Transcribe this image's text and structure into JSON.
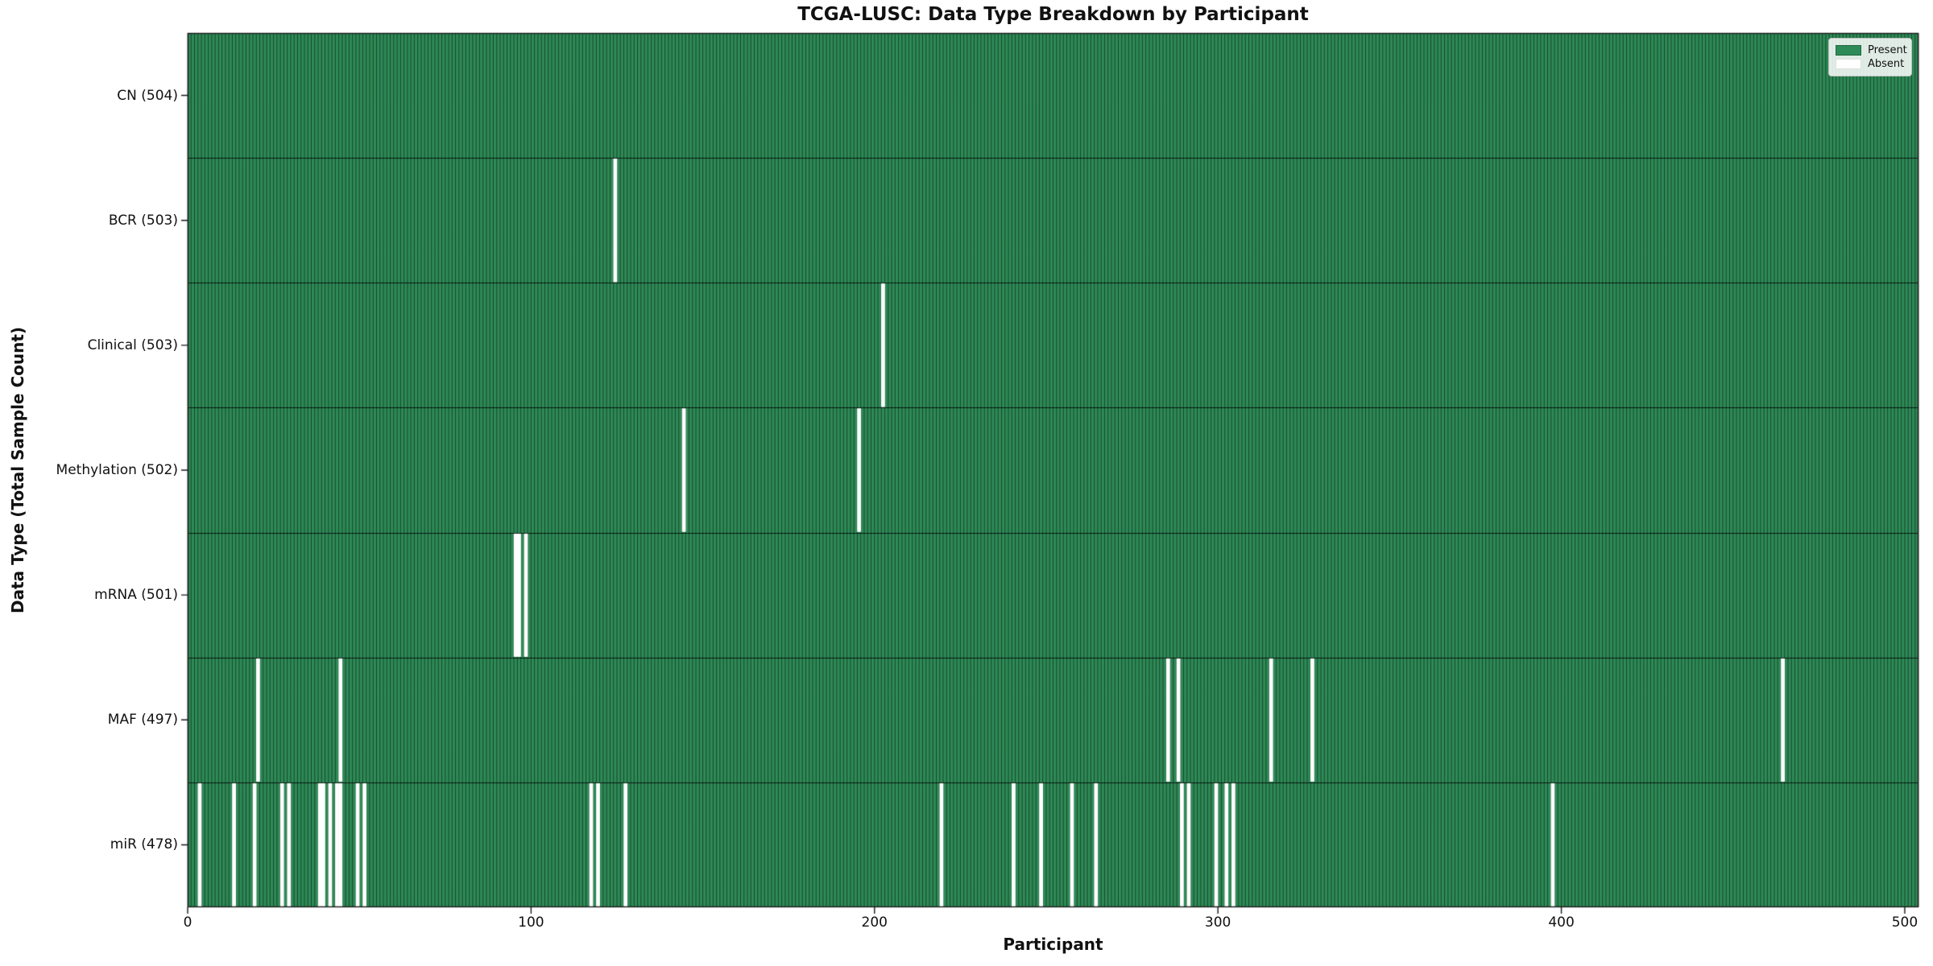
{
  "chart_data": {
    "type": "heatmap",
    "title": "TCGA-LUSC: Data Type Breakdown by Participant",
    "xlabel": "Participant",
    "ylabel": "Data Type (Total Sample Count)",
    "x_ticks": [
      0,
      100,
      200,
      300,
      400,
      500
    ],
    "xlim": [
      0,
      504
    ],
    "n_participants": 504,
    "grid": false,
    "legend": [
      "Present",
      "Absent"
    ],
    "legend_position": "upper right",
    "colors": {
      "present": "#2e8b57",
      "absent": "#ffffff",
      "bar_edge": "rgba(0,0,0,0.5)",
      "row_divider": "rgba(0,0,0,0.8)",
      "spine": "#1a1a1a",
      "background": "#ffffff"
    },
    "rows": [
      {
        "name": "CN",
        "label": "CN (504)",
        "total": 504,
        "absent_participants": []
      },
      {
        "name": "BCR",
        "label": "BCR (503)",
        "total": 503,
        "absent_participants": [
          124
        ]
      },
      {
        "name": "Clinical",
        "label": "Clinical (503)",
        "total": 503,
        "absent_participants": [
          202
        ]
      },
      {
        "name": "Methylation",
        "label": "Methylation (502)",
        "total": 502,
        "absent_participants": [
          144,
          195
        ]
      },
      {
        "name": "mRNA",
        "label": "mRNA (501)",
        "total": 501,
        "absent_participants": [
          95,
          96,
          98
        ]
      },
      {
        "name": "MAF",
        "label": "MAF (497)",
        "total": 497,
        "absent_participants": [
          20,
          44,
          285,
          288,
          315,
          327,
          464
        ]
      },
      {
        "name": "miR",
        "label": "miR (478)",
        "total": 478,
        "absent_participants": [
          3,
          13,
          19,
          27,
          29,
          38,
          39,
          41,
          43,
          44,
          49,
          51,
          117,
          119,
          127,
          219,
          240,
          248,
          257,
          264,
          289,
          291,
          299,
          302,
          304,
          397
        ]
      }
    ]
  }
}
